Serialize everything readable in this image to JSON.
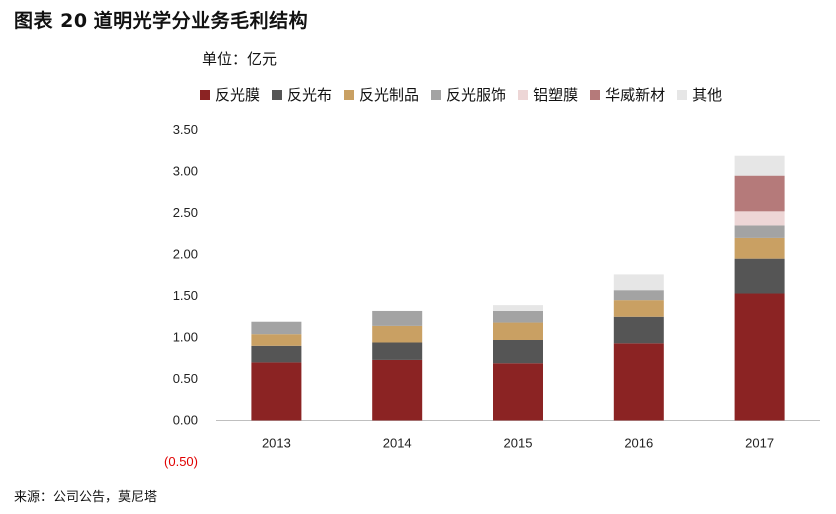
{
  "header": {
    "figure_no": "图表 20",
    "title": "道明光学分业务毛利结构",
    "unit": "单位：亿元"
  },
  "source": "来源：公司公告，莫尼塔",
  "chart_data": {
    "type": "bar",
    "stacked": true,
    "categories": [
      "2013",
      "2014",
      "2015",
      "2016",
      "2017"
    ],
    "series": [
      {
        "name": "反光膜",
        "color": "#8b2323",
        "values": [
          0.7,
          0.73,
          0.69,
          0.93,
          1.53
        ]
      },
      {
        "name": "反光布",
        "color": "#555555",
        "values": [
          0.2,
          0.21,
          0.28,
          0.32,
          0.42
        ]
      },
      {
        "name": "反光制品",
        "color": "#c9a063",
        "values": [
          0.14,
          0.2,
          0.21,
          0.2,
          0.25
        ]
      },
      {
        "name": "反光服饰",
        "color": "#a3a3a3",
        "values": [
          0.15,
          0.18,
          0.14,
          0.12,
          0.15
        ]
      },
      {
        "name": "铝塑膜",
        "color": "#edd6d6",
        "values": [
          0.0,
          0.0,
          0.0,
          0.0,
          0.17
        ]
      },
      {
        "name": "华威新材",
        "color": "#b57a7a",
        "values": [
          0.0,
          0.0,
          0.0,
          0.0,
          0.43
        ]
      },
      {
        "name": "其他",
        "color": "#e6e6e6",
        "values": [
          0.0,
          0.0,
          0.07,
          0.19,
          0.24
        ]
      }
    ],
    "ylim": [
      -0.5,
      3.5
    ],
    "yticks": [
      "3.50",
      "3.00",
      "2.50",
      "2.00",
      "1.50",
      "1.00",
      "0.50",
      "0.00",
      "(0.50)"
    ],
    "ytick_values": [
      3.5,
      3.0,
      2.5,
      2.0,
      1.5,
      1.0,
      0.5,
      0.0,
      -0.5
    ],
    "grid": false,
    "legend_position": "top"
  }
}
